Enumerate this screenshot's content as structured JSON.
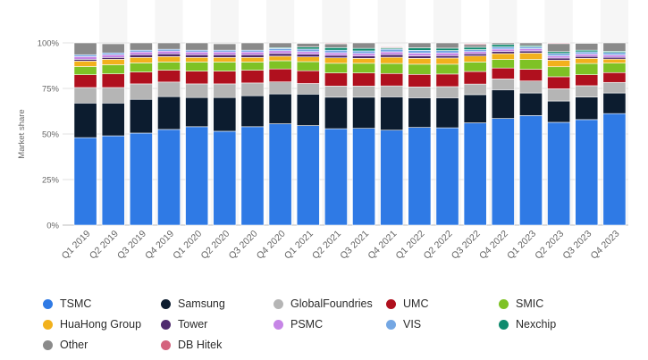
{
  "chart_data": {
    "type": "bar",
    "stacked": true,
    "ylabel": "Market share",
    "ylim": [
      0,
      100
    ],
    "yticks": [
      "0%",
      "25%",
      "50%",
      "75%",
      "100%"
    ],
    "grid": true,
    "legend_position": "bottom",
    "categories": [
      "Q1 2019",
      "Q2 2019",
      "Q3 2019",
      "Q4 2019",
      "Q1 2020",
      "Q2 2020",
      "Q3 2020",
      "Q4 2020",
      "Q1 2021",
      "Q2 2021",
      "Q3 2021",
      "Q4 2021",
      "Q1 2022",
      "Q2 2022",
      "Q3 2022",
      "Q4 2022",
      "Q1 2023",
      "Q2 2023",
      "Q3 2023",
      "Q4 2023"
    ],
    "series": [
      {
        "name": "TSMC",
        "color": "#2f7ae5",
        "values": [
          48,
          49,
          50.5,
          52.5,
          54,
          51.5,
          54,
          55.6,
          54.6,
          52.9,
          53.1,
          52.1,
          53.6,
          53.4,
          56.1,
          58.5,
          60.1,
          56.4,
          57.9,
          61.2
        ]
      },
      {
        "name": "Samsung",
        "color": "#0c1c2f",
        "values": [
          19,
          18,
          18.5,
          18,
          16,
          18.5,
          17,
          16.4,
          17.3,
          17.3,
          17.1,
          18.3,
          16.3,
          16.5,
          15.5,
          15.8,
          12.4,
          11.7,
          12.4,
          11.3
        ]
      },
      {
        "name": "GlobalFoundries",
        "color": "#b5b5b5",
        "values": [
          8.5,
          8.5,
          8.5,
          8,
          7.5,
          7.5,
          7,
          6.6,
          5.8,
          6.1,
          6.1,
          6.0,
          5.9,
          6.1,
          5.8,
          5.9,
          6.6,
          6.7,
          6.2,
          5.8
        ]
      },
      {
        "name": "UMC",
        "color": "#b0101e",
        "values": [
          7,
          7.5,
          6.5,
          6.5,
          7,
          7,
          7,
          7.1,
          7.0,
          7.2,
          7.2,
          6.8,
          6.9,
          6.9,
          6.9,
          6.0,
          6.4,
          6.6,
          6.0,
          5.4
        ]
      },
      {
        "name": "SMIC",
        "color": "#7ec225",
        "values": [
          4.5,
          5,
          5,
          4.5,
          5,
          5,
          4.5,
          4.5,
          5.0,
          5.3,
          5.3,
          5.5,
          5.6,
          5.4,
          5.2,
          4.7,
          5.4,
          5.5,
          6.2,
          5.2
        ]
      },
      {
        "name": "HuaHong Group",
        "color": "#f2b11c",
        "values": [
          3,
          3,
          3,
          3,
          2.5,
          2.5,
          2.5,
          2.5,
          2.6,
          3.0,
          2.7,
          3.4,
          3.2,
          3.4,
          3.3,
          3.2,
          3.5,
          3.6,
          2.8,
          2.2
        ]
      },
      {
        "name": "Tower",
        "color": "#4e2a6e",
        "values": [
          1,
          1,
          1.5,
          1.5,
          1.5,
          1.5,
          1.5,
          1.5,
          1.5,
          1.4,
          1.3,
          1.5,
          1.4,
          1.3,
          1.2,
          1.2,
          1.2,
          1.2,
          1.1,
          1.0
        ]
      },
      {
        "name": "PSMC",
        "color": "#c685e6",
        "values": [
          1.5,
          1.5,
          1.5,
          1.5,
          1.5,
          1.5,
          1.5,
          1.5,
          1.4,
          1.4,
          1.4,
          1.5,
          1.5,
          1.5,
          1.2,
          1.3,
          1.2,
          1.2,
          1.3,
          1.3
        ]
      },
      {
        "name": "VIS",
        "color": "#74a7e3",
        "values": [
          1,
          1,
          1,
          1,
          1,
          1,
          1,
          1.2,
          1.4,
          1.4,
          1.4,
          1.4,
          1.5,
          1.3,
          1.1,
          1.2,
          1.0,
          1.3,
          1.2,
          1.3
        ]
      },
      {
        "name": "Nexchip",
        "color": "#0f8a6e",
        "values": [
          0,
          0,
          0,
          0,
          0,
          0,
          0,
          0.5,
          1.1,
          1.4,
          1.4,
          0.6,
          1.4,
          1.3,
          1.3,
          1.3,
          0.7,
          1.0,
          0.9,
          0.7
        ]
      },
      {
        "name": "Other",
        "color": "#8a8a8a",
        "values": [
          6.5,
          5,
          4,
          4,
          4,
          3.5,
          4,
          3.2,
          2.1,
          2.1,
          3.0,
          0.5,
          2.7,
          3.6,
          1.5,
          1.4,
          3.3,
          4.4,
          3.8,
          4.6
        ]
      },
      {
        "name": "DB Hitek",
        "color": "#d4637d",
        "values": [
          0,
          0,
          0,
          0,
          0,
          0,
          0,
          0,
          0.3,
          0.4,
          0.4,
          0.4,
          0.4,
          0.4,
          0.5,
          0.6,
          0.5,
          0.5,
          0.4,
          0.5
        ]
      }
    ]
  }
}
